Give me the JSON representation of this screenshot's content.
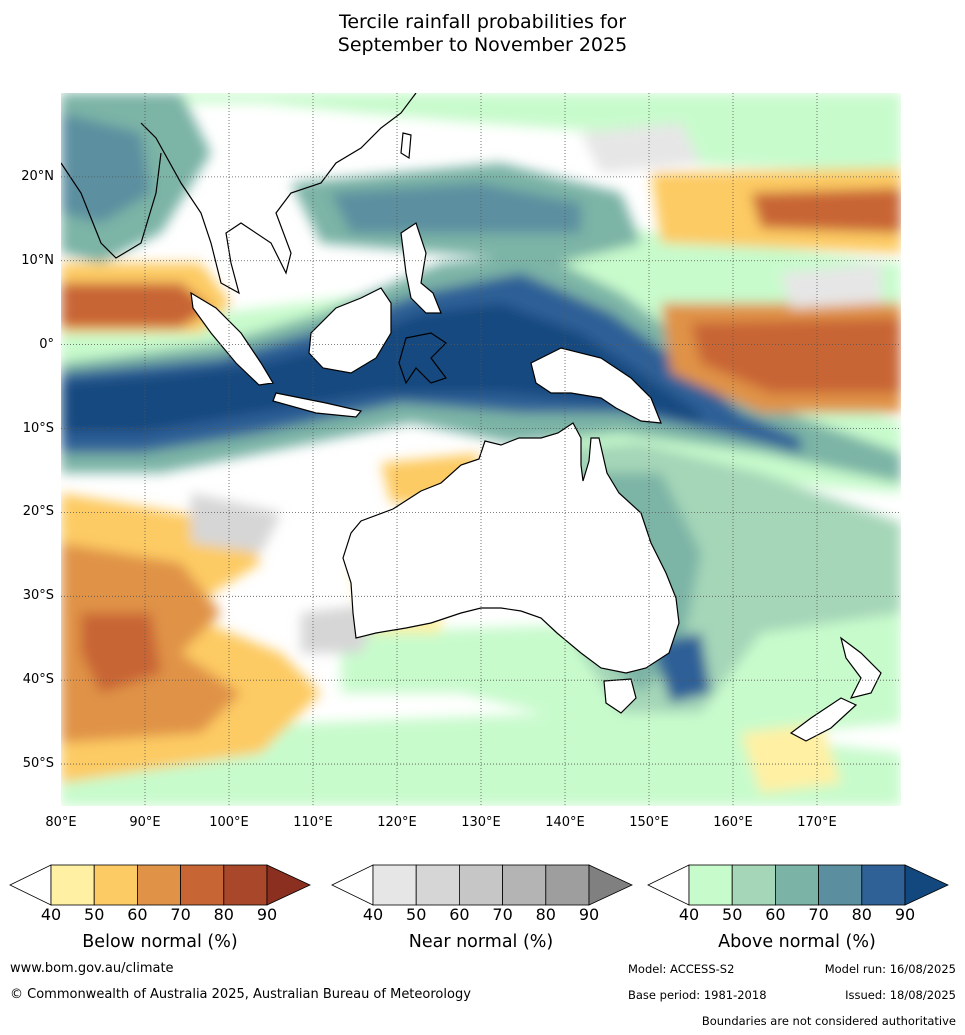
{
  "title_line1": "Tercile rainfall probabilities for",
  "title_line2": "September to November 2025",
  "lat_labels": [
    "20°N",
    "10°N",
    "0°",
    "10°S",
    "20°S",
    "30°S",
    "40°S",
    "50°S"
  ],
  "lon_labels": [
    "80°E",
    "90°E",
    "100°E",
    "110°E",
    "120°E",
    "130°E",
    "140°E",
    "150°E",
    "160°E",
    "170°E"
  ],
  "map_extent": {
    "lon_min": 80,
    "lon_max": 180,
    "lat_min": -55,
    "lat_max": 30
  },
  "legend": {
    "below": {
      "title": "Below normal (%)",
      "ticks": [
        "40",
        "50",
        "60",
        "70",
        "80",
        "90"
      ],
      "colors": [
        "#ffffff",
        "#fff0a3",
        "#fdcb64",
        "#e09346",
        "#c86534",
        "#a9472a",
        "#8b2f20"
      ]
    },
    "near": {
      "title": "Near normal (%)",
      "ticks": [
        "40",
        "50",
        "60",
        "70",
        "80",
        "90"
      ],
      "colors": [
        "#ffffff",
        "#e6e6e6",
        "#d6d6d6",
        "#c6c6c6",
        "#b4b4b4",
        "#9e9e9e",
        "#808080"
      ]
    },
    "above": {
      "title": "Above normal (%)",
      "ticks": [
        "40",
        "50",
        "60",
        "70",
        "80",
        "90"
      ],
      "colors": [
        "#ffffff",
        "#c8fbcc",
        "#a5d6b8",
        "#7bb4a6",
        "#5b8fa0",
        "#2f6197",
        "#13487f"
      ]
    }
  },
  "footer": {
    "website": "www.bom.gov.au/climate",
    "copyright": "© Commonwealth of Australia 2025, Australian Bureau of Meteorology",
    "model": "Model: ACCESS-S2",
    "model_run": "Model run: 16/08/2025",
    "base_period": "Base period: 1981-2018",
    "issued": "Issued: 18/08/2025",
    "disclaimer": "Boundaries are not considered authoritative"
  }
}
